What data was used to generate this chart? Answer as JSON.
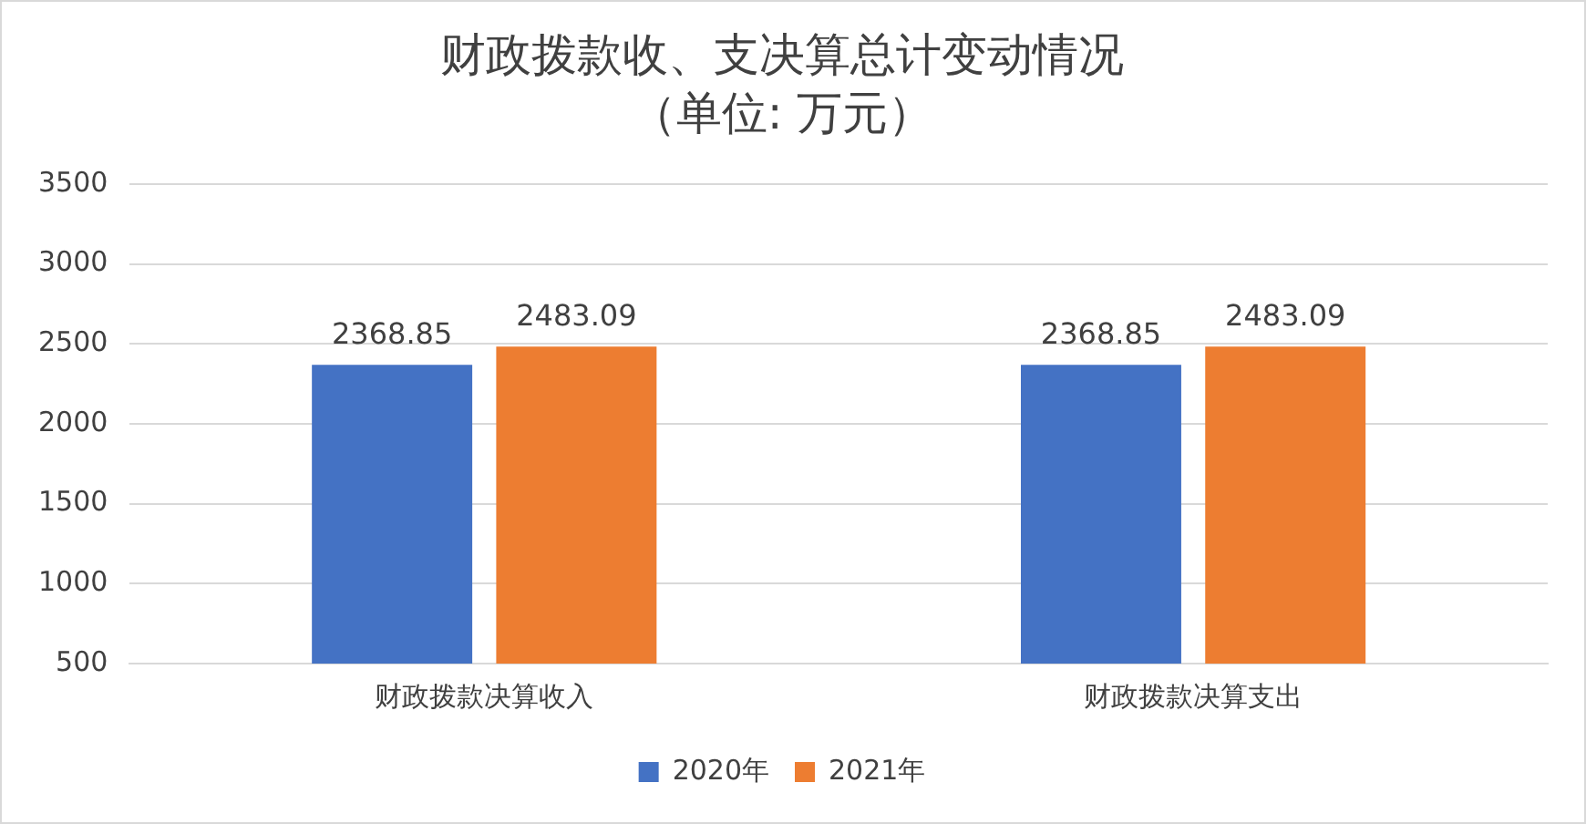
{
  "chart_data": {
    "type": "bar",
    "title": "财政拨款收、支决算总计变动情况",
    "subtitle": "（单位: 万元）",
    "categories": [
      "财政拨款决算收入",
      "财政拨款决算支出"
    ],
    "series": [
      {
        "name": "2020年",
        "color": "#4472c4",
        "values": [
          2368.85,
          2368.85
        ]
      },
      {
        "name": "2021年",
        "color": "#ed7d31",
        "values": [
          2483.09,
          2483.09
        ]
      }
    ],
    "ylim": [
      500,
      3500
    ],
    "yticks": [
      500,
      1000,
      1500,
      2000,
      2500,
      3000,
      3500
    ],
    "grid": "y",
    "legend": "bottom",
    "data_labels": true
  }
}
